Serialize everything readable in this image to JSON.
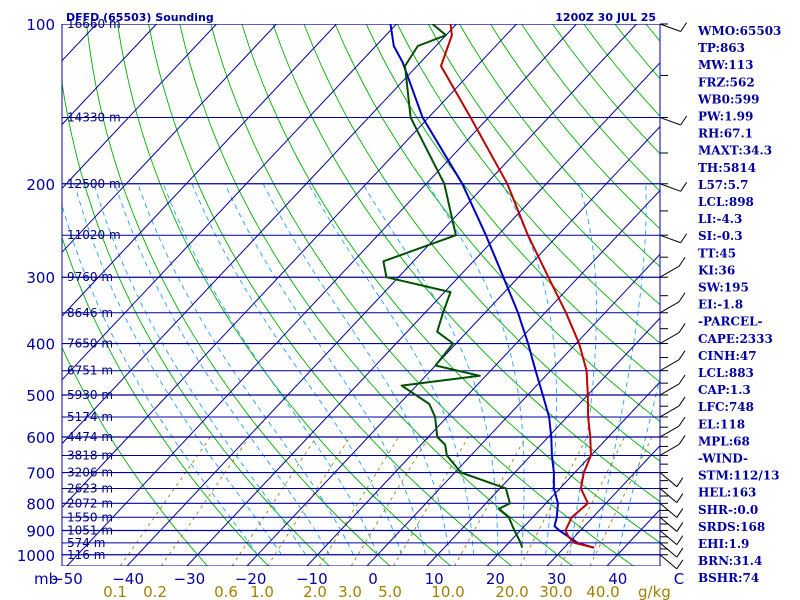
{
  "header": {
    "station": "DFFD (65503) Sounding",
    "time": "1200Z 30 JUL 25"
  },
  "indices": [
    "WMO:65503",
    "TP:863",
    "MW:113",
    "FRZ:562",
    "WB0:599",
    "PW:1.99",
    "RH:67.1",
    "MAXT:34.3",
    "TH:5814",
    "L57:5.7",
    "LCL:898",
    "LI:-4.3",
    "SI:-0.3",
    "TT:45",
    "KI:36",
    "SW:195",
    "EI:-1.8",
    "-PARCEL-",
    "CAPE:2333",
    "CINH:47",
    "LCL:883",
    "CAP:1.3",
    "LFC:748",
    "EL:118",
    "MPL:68",
    "-WIND-",
    "STM:112/13",
    "HEL:163",
    "SHR-:0.0",
    "SRDS:168",
    "EHI:1.9",
    "BRN:31.4",
    "BSHR:74"
  ],
  "colors": {
    "isobar": "#0000a0",
    "isotherm": "#0000a0",
    "dry_adiabat": "#00b000",
    "moist_adiabat": "#20a0ff",
    "mixing_ratio": "#a08000",
    "temperature": "#c00000",
    "dewpoint": "#005000",
    "parcel": "#0000c0",
    "wind": "#000000"
  },
  "chart_data": {
    "type": "line",
    "title": "DFFD (65503) Sounding",
    "ylabel": "mb",
    "xlabel": "C",
    "mixing_ratio_unit": "g/kg",
    "pressure_ticks": [
      100,
      200,
      300,
      400,
      500,
      600,
      700,
      800,
      900,
      1000
    ],
    "pressure_range": [
      100,
      1050
    ],
    "temperature_ticks": [
      -50,
      -40,
      -30,
      -20,
      -10,
      0,
      10,
      20,
      30,
      40,
      50
    ],
    "mixing_ratio_labels": [
      "0.1",
      "0.2",
      "0.6",
      "1.0",
      "2.0",
      "3.0",
      "5.0",
      "10.0",
      "20.0",
      "30.0",
      "40.0"
    ],
    "mixing_ratio_values": [
      0.1,
      0.2,
      0.6,
      1.0,
      2.0,
      3.0,
      5.0,
      10.0,
      20.0,
      30.0,
      40.0
    ],
    "heights": [
      {
        "p": 100,
        "label": "16660 m"
      },
      {
        "p": 150,
        "label": "14330 m"
      },
      {
        "p": 200,
        "label": "12500 m"
      },
      {
        "p": 250,
        "label": "11020 m"
      },
      {
        "p": 300,
        "label": "9760 m"
      },
      {
        "p": 350,
        "label": "8646 m"
      },
      {
        "p": 400,
        "label": "7650 m"
      },
      {
        "p": 450,
        "label": "6751 m"
      },
      {
        "p": 500,
        "label": "5930 m"
      },
      {
        "p": 550,
        "label": "5174 m"
      },
      {
        "p": 600,
        "label": "4474 m"
      },
      {
        "p": 650,
        "label": "3818 m"
      },
      {
        "p": 700,
        "label": "3206 m"
      },
      {
        "p": 750,
        "label": "2623 m"
      },
      {
        "p": 800,
        "label": "2072 m"
      },
      {
        "p": 850,
        "label": "1550 m"
      },
      {
        "p": 900,
        "label": "1051 m"
      },
      {
        "p": 950,
        "label": "574 m"
      },
      {
        "p": 1000,
        "label": "116 m"
      }
    ],
    "series": [
      {
        "name": "Temperature",
        "points": [
          [
            970,
            35.0
          ],
          [
            950,
            31.0
          ],
          [
            925,
            29.0
          ],
          [
            900,
            27.5
          ],
          [
            850,
            26.5
          ],
          [
            800,
            27.0
          ],
          [
            750,
            23.5
          ],
          [
            700,
            21.5
          ],
          [
            650,
            20.0
          ],
          [
            600,
            17.0
          ],
          [
            550,
            13.5
          ],
          [
            500,
            10.0
          ],
          [
            450,
            6.0
          ],
          [
            400,
            0.5
          ],
          [
            350,
            -6.5
          ],
          [
            300,
            -15.0
          ],
          [
            250,
            -25.0
          ],
          [
            200,
            -36.5
          ],
          [
            150,
            -53.0
          ],
          [
            120,
            -66.0
          ],
          [
            105,
            -69.0
          ],
          [
            100,
            -71.0
          ]
        ]
      },
      {
        "name": "Dewpoint",
        "points": [
          [
            970,
            23.0
          ],
          [
            950,
            22.0
          ],
          [
            900,
            19.0
          ],
          [
            850,
            16.0
          ],
          [
            820,
            13.0
          ],
          [
            800,
            14.0
          ],
          [
            750,
            11.0
          ],
          [
            700,
            1.0
          ],
          [
            650,
            -4.0
          ],
          [
            620,
            -6.0
          ],
          [
            600,
            -8.5
          ],
          [
            550,
            -12.0
          ],
          [
            520,
            -15.0
          ],
          [
            480,
            -22.5
          ],
          [
            460,
            -11.0
          ],
          [
            440,
            -20.0
          ],
          [
            400,
            -20.5
          ],
          [
            380,
            -25.0
          ],
          [
            350,
            -27.0
          ],
          [
            320,
            -29.0
          ],
          [
            300,
            -42.0
          ],
          [
            280,
            -45.0
          ],
          [
            250,
            -37.0
          ],
          [
            200,
            -47.0
          ],
          [
            150,
            -63.0
          ],
          [
            120,
            -72.0
          ],
          [
            110,
            -73.0
          ],
          [
            105,
            -70.0
          ],
          [
            100,
            -74.0
          ]
        ]
      },
      {
        "name": "Parcel",
        "points": [
          [
            970,
            35.0
          ],
          [
            950,
            31.5
          ],
          [
            900,
            26.5
          ],
          [
            883,
            25.0
          ],
          [
            850,
            24.0
          ],
          [
            800,
            22.0
          ],
          [
            750,
            19.0
          ],
          [
            700,
            16.5
          ],
          [
            650,
            13.5
          ],
          [
            600,
            10.5
          ],
          [
            550,
            7.0
          ],
          [
            500,
            2.5
          ],
          [
            450,
            -2.5
          ],
          [
            400,
            -8.0
          ],
          [
            350,
            -14.5
          ],
          [
            300,
            -22.5
          ],
          [
            250,
            -32.0
          ],
          [
            200,
            -44.0
          ],
          [
            150,
            -61.0
          ],
          [
            118,
            -73.0
          ],
          [
            110,
            -77.0
          ],
          [
            100,
            -81.0
          ]
        ]
      }
    ]
  }
}
